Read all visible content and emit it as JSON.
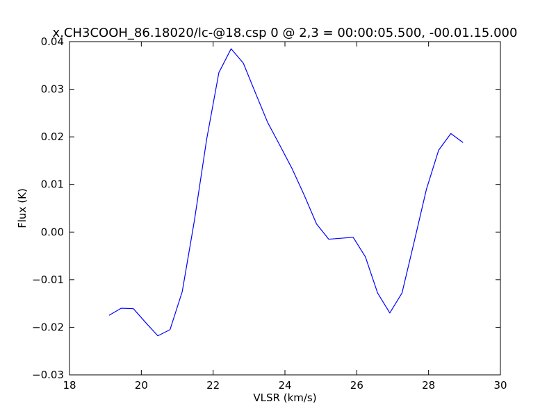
{
  "chart_data": {
    "type": "line",
    "title": "x.CH3COOH_86.18020/lc-@18.csp 0 @ 2,3 = 00:00:05.500, -00.01.15.000",
    "xlabel": "VLSR (km/s)",
    "ylabel": "Flux (K)",
    "xlim": [
      18,
      30
    ],
    "ylim": [
      -0.03,
      0.04
    ],
    "xticks": [
      "18",
      "20",
      "22",
      "24",
      "26",
      "28",
      "30"
    ],
    "yticks": [
      "−0.03",
      "−0.02",
      "−0.01",
      "0.00",
      "0.01",
      "0.02",
      "0.03",
      "0.04"
    ],
    "grid": false,
    "line_color": "#0000ff",
    "series": [
      {
        "x": [
          19.1,
          19.44,
          19.78,
          20.12,
          20.46,
          20.8,
          21.14,
          21.48,
          21.82,
          22.16,
          22.5,
          22.84,
          23.18,
          23.52,
          23.86,
          24.2,
          24.54,
          24.88,
          25.22,
          25.56,
          25.9,
          26.24,
          26.58,
          26.92,
          27.26,
          27.6,
          27.94,
          28.28,
          28.62,
          28.96
        ],
        "y": [
          -0.0175,
          -0.016,
          -0.0161,
          -0.019,
          -0.0218,
          -0.0205,
          -0.0125,
          0.0025,
          0.0195,
          0.0335,
          0.0385,
          0.0355,
          0.0292,
          0.023,
          0.0182,
          0.0133,
          0.0077,
          0.0017,
          -0.0015,
          -0.0013,
          -0.0011,
          -0.0052,
          -0.0128,
          -0.017,
          -0.0128,
          -0.002,
          0.009,
          0.0172,
          0.0207,
          0.0188
        ]
      }
    ]
  }
}
